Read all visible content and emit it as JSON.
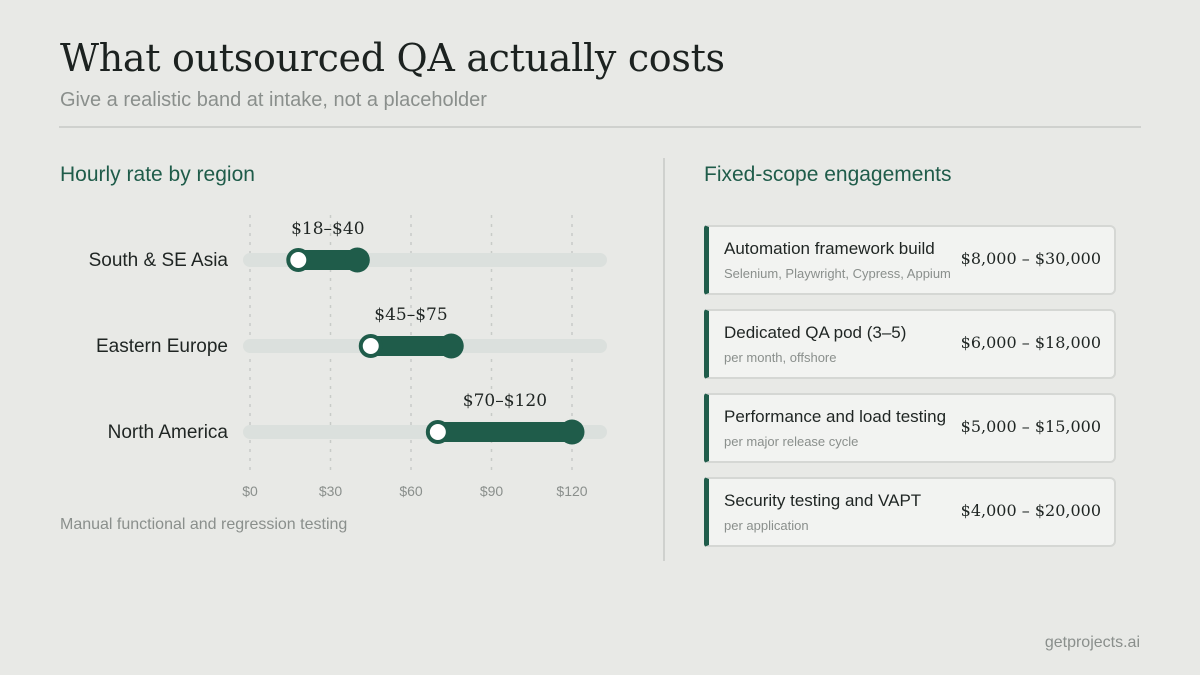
{
  "header": {
    "title": "What outsourced QA actually costs",
    "subtitle": "Give a realistic band at intake, not a placeholder"
  },
  "left": {
    "section_title": "Hourly rate by region",
    "footnote": "Manual functional and regression testing"
  },
  "chart_data": {
    "type": "range-bar",
    "title": "Hourly rate by region",
    "xlabel": "",
    "ylabel": "",
    "xlim": [
      0,
      132
    ],
    "x_ticks": [
      0,
      30,
      60,
      90,
      120
    ],
    "x_tick_labels": [
      "$0",
      "$30",
      "$60",
      "$90",
      "$120"
    ],
    "grid": true,
    "categories": [
      "South & SE Asia",
      "Eastern Europe",
      "North America"
    ],
    "ranges": [
      {
        "low": 18,
        "high": 40,
        "label": "$18–$40"
      },
      {
        "low": 45,
        "high": 75,
        "label": "$45–$75"
      },
      {
        "low": 70,
        "high": 120,
        "label": "$70–$120"
      }
    ],
    "colors": {
      "range": "#1f5c4a",
      "track": "#dbe0dd",
      "grid": "#c8cbc8",
      "low_marker_fill": "#ffffff"
    }
  },
  "right": {
    "section_title": "Fixed-scope engagements",
    "cards": [
      {
        "name": "Automation framework build",
        "detail": "Selenium, Playwright, Cypress, Appium",
        "price": "$8,000 – $30,000"
      },
      {
        "name": "Dedicated QA pod (3–5)",
        "detail": "per month, offshore",
        "price": "$6,000 – $18,000"
      },
      {
        "name": "Performance and load testing",
        "detail": "per major release cycle",
        "price": "$5,000 – $15,000"
      },
      {
        "name": "Security testing and VAPT",
        "detail": "per application",
        "price": "$4,000 – $20,000"
      }
    ]
  },
  "footer": {
    "brand": "getprojects.ai"
  },
  "colors": {
    "accent": "#1f5c4a",
    "background": "#e8e9e6",
    "muted_text": "#8a8f8c"
  }
}
